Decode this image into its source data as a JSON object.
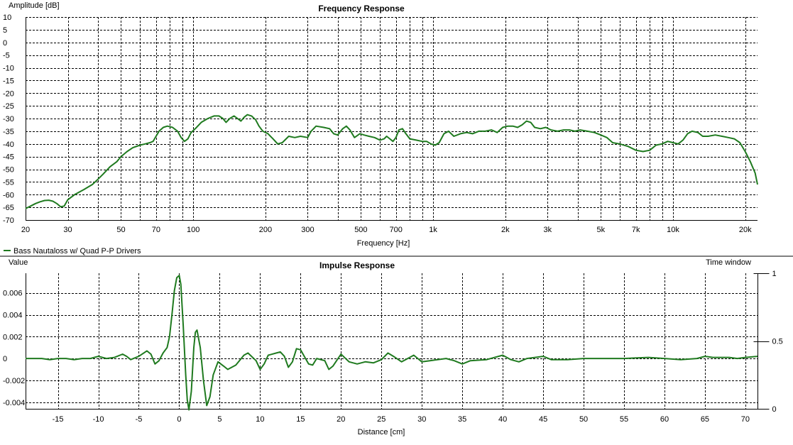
{
  "chart_data": [
    {
      "type": "line",
      "title": "Frequency Response",
      "ylabel": "Amplitude [dB]",
      "xlabel": "Frequency [Hz]",
      "xscale": "log",
      "xlim": [
        20,
        22500
      ],
      "ylim": [
        -70,
        10
      ],
      "grid": true,
      "yticks": [
        10,
        5,
        0,
        -5,
        -10,
        -15,
        -20,
        -25,
        -30,
        -35,
        -40,
        -45,
        -50,
        -55,
        -60,
        -65,
        -70
      ],
      "xtick_labels": [
        {
          "v": 20,
          "t": "20"
        },
        {
          "v": 30,
          "t": "30"
        },
        {
          "v": 50,
          "t": "50"
        },
        {
          "v": 70,
          "t": "70"
        },
        {
          "v": 100,
          "t": "100"
        },
        {
          "v": 200,
          "t": "200"
        },
        {
          "v": 300,
          "t": "300"
        },
        {
          "v": 500,
          "t": "500"
        },
        {
          "v": 700,
          "t": "700"
        },
        {
          "v": 1000,
          "t": "1k"
        },
        {
          "v": 2000,
          "t": "2k"
        },
        {
          "v": 3000,
          "t": "3k"
        },
        {
          "v": 5000,
          "t": "5k"
        },
        {
          "v": 7000,
          "t": "7k"
        },
        {
          "v": 10000,
          "t": "10k"
        },
        {
          "v": 20000,
          "t": "20k"
        }
      ],
      "legend": {
        "position": "bottom-left",
        "entries": [
          "Bass Nautaloss w/ Quad P-P Drivers"
        ]
      },
      "series": [
        {
          "name": "Bass Nautaloss w/ Quad P-P Drivers",
          "color": "#1f7a1f",
          "points": [
            [
              20,
              -65.5
            ],
            [
              21,
              -64.5
            ],
            [
              22,
              -63.5
            ],
            [
              23,
              -62.8
            ],
            [
              24,
              -62.3
            ],
            [
              25,
              -62.2
            ],
            [
              26,
              -62.6
            ],
            [
              27,
              -63.5
            ],
            [
              28,
              -64.8
            ],
            [
              29,
              -64.5
            ],
            [
              30,
              -62
            ],
            [
              32,
              -60
            ],
            [
              35,
              -58
            ],
            [
              38,
              -56
            ],
            [
              40,
              -54
            ],
            [
              42,
              -52
            ],
            [
              45,
              -49
            ],
            [
              48,
              -47
            ],
            [
              50,
              -45
            ],
            [
              53,
              -43
            ],
            [
              56,
              -41.5
            ],
            [
              60,
              -40.5
            ],
            [
              63,
              -40
            ],
            [
              66,
              -39.5
            ],
            [
              68,
              -39
            ],
            [
              70,
              -37
            ],
            [
              72,
              -35
            ],
            [
              75,
              -33.5
            ],
            [
              78,
              -33
            ],
            [
              82,
              -33.5
            ],
            [
              86,
              -35
            ],
            [
              89,
              -37.5
            ],
            [
              92,
              -39
            ],
            [
              95,
              -38
            ],
            [
              98,
              -35.5
            ],
            [
              102,
              -34
            ],
            [
              108,
              -31.5
            ],
            [
              115,
              -30
            ],
            [
              122,
              -29
            ],
            [
              128,
              -29
            ],
            [
              133,
              -30
            ],
            [
              137,
              -31.5
            ],
            [
              142,
              -30
            ],
            [
              148,
              -29
            ],
            [
              153,
              -30
            ],
            [
              158,
              -31
            ],
            [
              163,
              -29.5
            ],
            [
              168,
              -28.5
            ],
            [
              175,
              -29
            ],
            [
              182,
              -30.5
            ],
            [
              188,
              -33
            ],
            [
              195,
              -35
            ],
            [
              205,
              -36
            ],
            [
              215,
              -38
            ],
            [
              225,
              -40
            ],
            [
              235,
              -39.5
            ],
            [
              250,
              -37
            ],
            [
              265,
              -37.5
            ],
            [
              280,
              -37
            ],
            [
              300,
              -37.5
            ],
            [
              310,
              -35
            ],
            [
              325,
              -33
            ],
            [
              350,
              -33.5
            ],
            [
              370,
              -34
            ],
            [
              385,
              -36
            ],
            [
              400,
              -36.5
            ],
            [
              420,
              -34
            ],
            [
              435,
              -33
            ],
            [
              450,
              -34.5
            ],
            [
              470,
              -37.5
            ],
            [
              495,
              -36
            ],
            [
              515,
              -36.5
            ],
            [
              540,
              -37
            ],
            [
              570,
              -37.5
            ],
            [
              600,
              -38.5
            ],
            [
              625,
              -38
            ],
            [
              640,
              -37
            ],
            [
              660,
              -38
            ],
            [
              680,
              -39
            ],
            [
              700,
              -37.5
            ],
            [
              720,
              -34.5
            ],
            [
              745,
              -34
            ],
            [
              770,
              -36
            ],
            [
              800,
              -38
            ],
            [
              850,
              -38.5
            ],
            [
              900,
              -39
            ],
            [
              940,
              -39
            ],
            [
              980,
              -40
            ],
            [
              1020,
              -40.5
            ],
            [
              1060,
              -39.5
            ],
            [
              1110,
              -36
            ],
            [
              1160,
              -35
            ],
            [
              1220,
              -37
            ],
            [
              1300,
              -36
            ],
            [
              1380,
              -35.5
            ],
            [
              1460,
              -36
            ],
            [
              1550,
              -35
            ],
            [
              1650,
              -35
            ],
            [
              1750,
              -34.5
            ],
            [
              1850,
              -35.5
            ],
            [
              1950,
              -33.5
            ],
            [
              2050,
              -33
            ],
            [
              2150,
              -33
            ],
            [
              2250,
              -33.5
            ],
            [
              2350,
              -32.5
            ],
            [
              2450,
              -31
            ],
            [
              2550,
              -31.5
            ],
            [
              2650,
              -33.5
            ],
            [
              2800,
              -34
            ],
            [
              2950,
              -33.5
            ],
            [
              3100,
              -34.5
            ],
            [
              3300,
              -35
            ],
            [
              3500,
              -34.5
            ],
            [
              3700,
              -34.5
            ],
            [
              3900,
              -35
            ],
            [
              4100,
              -34.5
            ],
            [
              4400,
              -35
            ],
            [
              4700,
              -35.5
            ],
            [
              5000,
              -36.5
            ],
            [
              5300,
              -37.5
            ],
            [
              5600,
              -39.5
            ],
            [
              6000,
              -40
            ],
            [
              6500,
              -41
            ],
            [
              7000,
              -42.5
            ],
            [
              7500,
              -43
            ],
            [
              8000,
              -42.5
            ],
            [
              8500,
              -40.5
            ],
            [
              9000,
              -40
            ],
            [
              9500,
              -39
            ],
            [
              10000,
              -39.5
            ],
            [
              10500,
              -40
            ],
            [
              11000,
              -38.5
            ],
            [
              11500,
              -36
            ],
            [
              12000,
              -35
            ],
            [
              12700,
              -35.5
            ],
            [
              13300,
              -37
            ],
            [
              14000,
              -37
            ],
            [
              15000,
              -36.5
            ],
            [
              16000,
              -37
            ],
            [
              17000,
              -37.5
            ],
            [
              18000,
              -38
            ],
            [
              19000,
              -39.5
            ],
            [
              20000,
              -43
            ],
            [
              21000,
              -47
            ],
            [
              22000,
              -51.5
            ],
            [
              22500,
              -56
            ]
          ]
        }
      ]
    },
    {
      "type": "line",
      "title": "Impulse Response",
      "ylabel": "Value",
      "y2label": "Time window",
      "xlabel": "Distance [cm]",
      "xlim": [
        -19,
        71.5
      ],
      "ylim": [
        -0.0046,
        0.0078
      ],
      "y2lim": [
        0,
        1
      ],
      "grid": true,
      "yticks": [
        0.006,
        0.004,
        0.002,
        0,
        -0.002,
        -0.004
      ],
      "ytick_labels": [
        "0.006",
        "0.004",
        "0.002",
        "0",
        "-0.002",
        "-0.004"
      ],
      "y2ticks": [
        1,
        0.5,
        0
      ],
      "y2tick_labels": [
        "1",
        "0.5",
        "0"
      ],
      "xticks": [
        -15,
        -10,
        -5,
        0,
        5,
        10,
        15,
        20,
        25,
        30,
        35,
        40,
        45,
        50,
        55,
        60,
        65,
        70
      ],
      "series": [
        {
          "name": "",
          "color": "#1f7a1f",
          "points": [
            [
              -19,
              0
            ],
            [
              -17,
              0
            ],
            [
              -16,
              -0.0001
            ],
            [
              -15,
              0
            ],
            [
              -14,
              0
            ],
            [
              -13,
              -0.0001
            ],
            [
              -12,
              0
            ],
            [
              -11,
              0
            ],
            [
              -10.5,
              0.0001
            ],
            [
              -10,
              0.0002
            ],
            [
              -9,
              0
            ],
            [
              -8,
              0.0001
            ],
            [
              -7,
              0.0004
            ],
            [
              -6.5,
              0.0002
            ],
            [
              -6,
              -0.0001
            ],
            [
              -5,
              0.0002
            ],
            [
              -4,
              0.0007
            ],
            [
              -3.5,
              0.0004
            ],
            [
              -3,
              -0.0005
            ],
            [
              -2.5,
              -0.0002
            ],
            [
              -2,
              0.0005
            ],
            [
              -1.5,
              0.001
            ],
            [
              -1.2,
              0.002
            ],
            [
              -0.9,
              0.004
            ],
            [
              -0.6,
              0.0062
            ],
            [
              -0.3,
              0.0074
            ],
            [
              0,
              0.0076
            ],
            [
              0.2,
              0.0068
            ],
            [
              0.5,
              0.003
            ],
            [
              0.8,
              -0.0015
            ],
            [
              1,
              -0.0038
            ],
            [
              1.2,
              -0.0047
            ],
            [
              1.5,
              -0.003
            ],
            [
              1.8,
              0.001
            ],
            [
              2,
              0.0024
            ],
            [
              2.2,
              0.0026
            ],
            [
              2.6,
              0.001
            ],
            [
              3,
              -0.002
            ],
            [
              3.4,
              -0.0043
            ],
            [
              3.8,
              -0.0035
            ],
            [
              4.2,
              -0.0015
            ],
            [
              4.8,
              -0.0003
            ],
            [
              5.5,
              -0.0007
            ],
            [
              6,
              -0.001
            ],
            [
              7,
              -0.0006
            ],
            [
              8,
              0.0003
            ],
            [
              8.5,
              0.0005
            ],
            [
              9.5,
              -0.0002
            ],
            [
              10,
              -0.001
            ],
            [
              10.5,
              -0.0005
            ],
            [
              11,
              0.0003
            ],
            [
              12,
              0.0005
            ],
            [
              12.5,
              0.0006
            ],
            [
              13,
              0.0002
            ],
            [
              13.5,
              -0.0008
            ],
            [
              14,
              -0.0003
            ],
            [
              14.5,
              0.0009
            ],
            [
              15,
              0.0008
            ],
            [
              16,
              -0.0005
            ],
            [
              16.5,
              -0.0006
            ],
            [
              17,
              0
            ],
            [
              18,
              -0.0002
            ],
            [
              18.5,
              -0.001
            ],
            [
              19,
              -0.0007
            ],
            [
              20,
              0.0004
            ],
            [
              21,
              -0.0003
            ],
            [
              22,
              -0.0005
            ],
            [
              23,
              -0.0003
            ],
            [
              24,
              -0.0004
            ],
            [
              25,
              -0.0001
            ],
            [
              25.8,
              0.0005
            ],
            [
              26.5,
              0.0002
            ],
            [
              27.5,
              -0.0003
            ],
            [
              28.5,
              0.0001
            ],
            [
              29,
              0.0003
            ],
            [
              30,
              -0.0003
            ],
            [
              31,
              -0.0002
            ],
            [
              33,
              0
            ],
            [
              34,
              -0.0002
            ],
            [
              35,
              -0.0005
            ],
            [
              36,
              -0.0002
            ],
            [
              38,
              -0.0001
            ],
            [
              40,
              0.0003
            ],
            [
              41,
              -0.0001
            ],
            [
              42,
              -0.0003
            ],
            [
              43,
              0
            ],
            [
              44,
              0.0001
            ],
            [
              45,
              0.0002
            ],
            [
              46,
              -0.0001
            ],
            [
              48,
              -0.0001
            ],
            [
              50,
              0
            ],
            [
              55,
              0
            ],
            [
              58,
              0.0001
            ],
            [
              60,
              0
            ],
            [
              62,
              -0.0001
            ],
            [
              64,
              0
            ],
            [
              65,
              0.0002
            ],
            [
              66,
              0.0001
            ],
            [
              68,
              0.0001
            ],
            [
              69,
              0
            ],
            [
              70,
              0.0001
            ],
            [
              71.5,
              0.0002
            ]
          ]
        }
      ]
    }
  ]
}
